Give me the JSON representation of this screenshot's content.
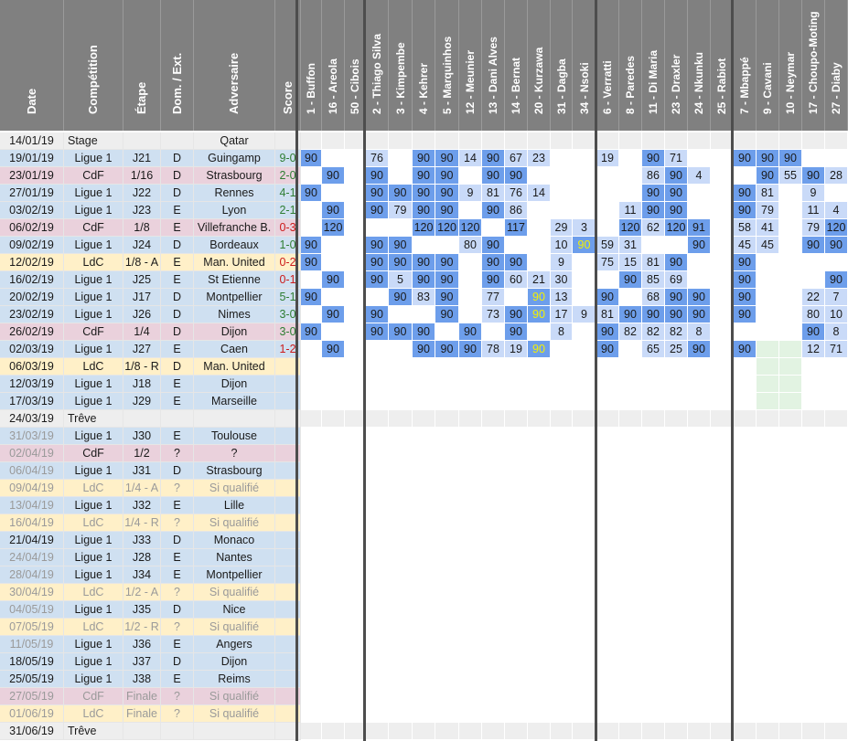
{
  "columns": [
    {
      "key": "date",
      "label": "Date"
    },
    {
      "key": "comp",
      "label": "Compétition"
    },
    {
      "key": "stage",
      "label": "Étape"
    },
    {
      "key": "venue",
      "label": "Dom. / Ext."
    },
    {
      "key": "opp",
      "label": "Adversaire"
    },
    {
      "key": "score",
      "label": "Score"
    },
    {
      "key": "p1",
      "label": "1 - Buffon"
    },
    {
      "key": "p16",
      "label": "16 - Areola"
    },
    {
      "key": "p50",
      "label": "50 - Cibois"
    },
    {
      "key": "p2",
      "label": "2 - Thiago Silva"
    },
    {
      "key": "p3",
      "label": "3 - Kimpembe"
    },
    {
      "key": "p4",
      "label": "4 - Kehrer"
    },
    {
      "key": "p5",
      "label": "5 - Marquinhos"
    },
    {
      "key": "p12",
      "label": "12 - Meunier"
    },
    {
      "key": "p13",
      "label": "13 - Dani Alves"
    },
    {
      "key": "p14",
      "label": "14 - Bernat"
    },
    {
      "key": "p20",
      "label": "20 - Kurzawa"
    },
    {
      "key": "p31",
      "label": "31 - Dagba"
    },
    {
      "key": "p34",
      "label": "34 - Nsoki"
    },
    {
      "key": "p6",
      "label": "6 - Verratti"
    },
    {
      "key": "p8",
      "label": "8 - Paredes"
    },
    {
      "key": "p11",
      "label": "11 - Di Maria"
    },
    {
      "key": "p23",
      "label": "23 - Draxler"
    },
    {
      "key": "p24",
      "label": "24 - Nkunku"
    },
    {
      "key": "p25",
      "label": "25 - Rabiot"
    },
    {
      "key": "p7",
      "label": "7 - Mbappé"
    },
    {
      "key": "p9",
      "label": "9 - Cavani"
    },
    {
      "key": "p10",
      "label": "10 - Neymar"
    },
    {
      "key": "p17",
      "label": "17 - Choupo-Moting"
    },
    {
      "key": "p27",
      "label": "27 - Diaby"
    }
  ],
  "matches": [
    {
      "date": "14/01/19",
      "comp": "Stage",
      "stage": "",
      "venue": "",
      "opp": "Qatar",
      "score": "",
      "kind": "stage"
    },
    {
      "date": "19/01/19",
      "comp": "Ligue 1",
      "stage": "J21",
      "venue": "D",
      "opp": "Guingamp",
      "score": "9-0",
      "kind": "l1",
      "mins": {
        "p1": "90",
        "p2": "76",
        "p4": "90",
        "p5": "90",
        "p12": "14",
        "p13": "90",
        "p14": "67",
        "p20": "23",
        "p6": "19",
        "p11": "90",
        "p23": "71",
        "p7": "90",
        "p9": "90",
        "p10": "90"
      }
    },
    {
      "date": "23/01/19",
      "comp": "CdF",
      "stage": "1/16",
      "venue": "D",
      "opp": "Strasbourg",
      "score": "2-0",
      "kind": "cdf",
      "mins": {
        "p16": "90",
        "p2": "90",
        "p4": "90",
        "p5": "90",
        "p13": "90",
        "p14": "90",
        "p11": "86",
        "p23": "90",
        "p24": "4",
        "p9": "90",
        "p10": "55",
        "p17": "90",
        "p27": "28"
      }
    },
    {
      "date": "27/01/19",
      "comp": "Ligue 1",
      "stage": "J22",
      "venue": "D",
      "opp": "Rennes",
      "score": "4-1",
      "kind": "l1",
      "mins": {
        "p1": "90",
        "p2": "90",
        "p3": "90",
        "p4": "90",
        "p5": "90",
        "p12": "9",
        "p13": "81",
        "p14": "76",
        "p20": "14",
        "p11": "90",
        "p23": "90",
        "p7": "90",
        "p9": "81",
        "p17": "9"
      }
    },
    {
      "date": "03/02/19",
      "comp": "Ligue 1",
      "stage": "J23",
      "venue": "E",
      "opp": "Lyon",
      "score": "2-1",
      "kind": "l1",
      "mins": {
        "p16": "90",
        "p2": "90",
        "p3": "79",
        "p4": "90",
        "p5": "90",
        "p13": "90",
        "p14": "86",
        "p8": "11",
        "p11": "90",
        "p23": "90",
        "p7": "90",
        "p9": "79",
        "p17": "11",
        "p27": "4"
      }
    },
    {
      "date": "06/02/19",
      "comp": "CdF",
      "stage": "1/8",
      "venue": "E",
      "opp": "Villefranche B.",
      "score": "0-3",
      "kind": "cdf",
      "mins": {
        "p16": "120",
        "p4": "120",
        "p5": "120",
        "p12": "120",
        "p14": "117",
        "p31": "29",
        "p34": "3",
        "p8": "120",
        "p11": "62",
        "p23": "120",
        "p24": "91",
        "p7": "58",
        "p9": "41",
        "p17": "79",
        "p27": "120"
      }
    },
    {
      "date": "09/02/19",
      "comp": "Ligue 1",
      "stage": "J24",
      "venue": "D",
      "opp": "Bordeaux",
      "score": "1-0",
      "kind": "l1",
      "mins": {
        "p1": "90",
        "p2": "90",
        "p3": "90",
        "p12": "80",
        "p13": "90",
        "p31": "10",
        "p34": "90",
        "p6": "59",
        "p8": "31",
        "p24": "90",
        "p7": "45",
        "p9": "45",
        "p17": "90",
        "p27": "90"
      }
    },
    {
      "date": "12/02/19",
      "comp": "LdC",
      "stage": "1/8 - A",
      "venue": "E",
      "opp": "Man. United",
      "score": "0-2",
      "kind": "ldc",
      "mins": {
        "p1": "90",
        "p2": "90",
        "p3": "90",
        "p4": "90",
        "p5": "90",
        "p13": "90",
        "p14": "90",
        "p31": "9",
        "p6": "75",
        "p8": "15",
        "p11": "81",
        "p23": "90",
        "p7": "90"
      }
    },
    {
      "date": "16/02/19",
      "comp": "Ligue 1",
      "stage": "J25",
      "venue": "E",
      "opp": "St Etienne",
      "score": "0-1",
      "kind": "l1",
      "mins": {
        "p16": "90",
        "p2": "90",
        "p3": "5",
        "p4": "90",
        "p5": "90",
        "p13": "90",
        "p14": "60",
        "p20": "21",
        "p31": "30",
        "p8": "90",
        "p11": "85",
        "p23": "69",
        "p7": "90",
        "p27": "90"
      }
    },
    {
      "date": "20/02/19",
      "comp": "Ligue 1",
      "stage": "J17",
      "venue": "D",
      "opp": "Montpellier",
      "score": "5-1",
      "kind": "l1",
      "mins": {
        "p1": "90",
        "p3": "90",
        "p4": "83",
        "p5": "90",
        "p13": "77",
        "p20": "90",
        "p31": "13",
        "p6": "90",
        "p11": "68",
        "p23": "90",
        "p24": "90",
        "p7": "90",
        "p17": "22",
        "p27": "7"
      }
    },
    {
      "date": "23/02/19",
      "comp": "Ligue 1",
      "stage": "J26",
      "venue": "D",
      "opp": "Nimes",
      "score": "3-0",
      "kind": "l1",
      "mins": {
        "p16": "90",
        "p2": "90",
        "p5": "90",
        "p13": "73",
        "p14": "90",
        "p20": "90",
        "p31": "17",
        "p34": "9",
        "p6": "81",
        "p8": "90",
        "p11": "90",
        "p23": "90",
        "p24": "90",
        "p7": "90",
        "p17": "80",
        "p27": "10"
      }
    },
    {
      "date": "26/02/19",
      "comp": "CdF",
      "stage": "1/4",
      "venue": "D",
      "opp": "Dijon",
      "score": "3-0",
      "kind": "cdf",
      "mins": {
        "p1": "90",
        "p2": "90",
        "p3": "90",
        "p4": "90",
        "p12": "90",
        "p14": "90",
        "p31": "8",
        "p6": "90",
        "p8": "82",
        "p11": "82",
        "p23": "82",
        "p24": "8",
        "p17": "90",
        "p27": "8"
      }
    },
    {
      "date": "02/03/19",
      "comp": "Ligue 1",
      "stage": "J27",
      "venue": "E",
      "opp": "Caen",
      "score": "1-2",
      "kind": "l1",
      "mins": {
        "p16": "90",
        "p4": "90",
        "p5": "90",
        "p12": "90",
        "p13": "78",
        "p14": "19",
        "p20": "90",
        "p6": "90",
        "p11": "65",
        "p23": "25",
        "p24": "90",
        "p7": "90",
        "p17": "12",
        "p27": "71"
      }
    },
    {
      "date": "06/03/19",
      "comp": "LdC",
      "stage": "1/8 - R",
      "venue": "D",
      "opp": "Man. United",
      "score": "",
      "kind": "ldc"
    },
    {
      "date": "12/03/19",
      "comp": "Ligue 1",
      "stage": "J18",
      "venue": "E",
      "opp": "Dijon",
      "score": "",
      "kind": "l1"
    },
    {
      "date": "17/03/19",
      "comp": "Ligue 1",
      "stage": "J29",
      "venue": "E",
      "opp": "Marseille",
      "score": "",
      "kind": "l1"
    },
    {
      "date": "24/03/19",
      "comp": "Trêve",
      "stage": "",
      "venue": "",
      "opp": "",
      "score": "",
      "kind": "treve"
    },
    {
      "date": "31/03/19",
      "comp": "Ligue 1",
      "stage": "J30",
      "venue": "E",
      "opp": "Toulouse",
      "score": "",
      "kind": "l1",
      "dimdate": true
    },
    {
      "date": "02/04/19",
      "comp": "CdF",
      "stage": "1/2",
      "venue": "?",
      "opp": "?",
      "score": "",
      "kind": "cdf",
      "dimdate": true
    },
    {
      "date": "06/04/19",
      "comp": "Ligue 1",
      "stage": "J31",
      "venue": "D",
      "opp": "Strasbourg",
      "score": "",
      "kind": "l1",
      "dimdate": true
    },
    {
      "date": "09/04/19",
      "comp": "LdC",
      "stage": "1/4 - A",
      "venue": "?",
      "opp": "Si qualifié",
      "score": "",
      "kind": "ldc",
      "dim": true
    },
    {
      "date": "13/04/19",
      "comp": "Ligue 1",
      "stage": "J32",
      "venue": "E",
      "opp": "Lille",
      "score": "",
      "kind": "l1",
      "dimdate": true
    },
    {
      "date": "16/04/19",
      "comp": "LdC",
      "stage": "1/4 - R",
      "venue": "?",
      "opp": "Si qualifié",
      "score": "",
      "kind": "ldc",
      "dim": true
    },
    {
      "date": "21/04/19",
      "comp": "Ligue 1",
      "stage": "J33",
      "venue": "D",
      "opp": "Monaco",
      "score": "",
      "kind": "l1"
    },
    {
      "date": "24/04/19",
      "comp": "Ligue 1",
      "stage": "J28",
      "venue": "E",
      "opp": "Nantes",
      "score": "",
      "kind": "l1",
      "dimdate": true
    },
    {
      "date": "28/04/19",
      "comp": "Ligue 1",
      "stage": "J34",
      "venue": "E",
      "opp": "Montpellier",
      "score": "",
      "kind": "l1",
      "dimdate": true
    },
    {
      "date": "30/04/19",
      "comp": "LdC",
      "stage": "1/2 - A",
      "venue": "?",
      "opp": "Si qualifié",
      "score": "",
      "kind": "ldc",
      "dim": true
    },
    {
      "date": "04/05/19",
      "comp": "Ligue 1",
      "stage": "J35",
      "venue": "D",
      "opp": "Nice",
      "score": "",
      "kind": "l1",
      "dimdate": true
    },
    {
      "date": "07/05/19",
      "comp": "LdC",
      "stage": "1/2 - R",
      "venue": "?",
      "opp": "Si qualifié",
      "score": "",
      "kind": "ldc",
      "dim": true
    },
    {
      "date": "11/05/19",
      "comp": "Ligue 1",
      "stage": "J36",
      "venue": "E",
      "opp": "Angers",
      "score": "",
      "kind": "l1",
      "dimdate": true
    },
    {
      "date": "18/05/19",
      "comp": "Ligue 1",
      "stage": "J37",
      "venue": "D",
      "opp": "Dijon",
      "score": "",
      "kind": "l1"
    },
    {
      "date": "25/05/19",
      "comp": "Ligue 1",
      "stage": "J38",
      "venue": "E",
      "opp": "Reims",
      "score": "",
      "kind": "l1"
    },
    {
      "date": "27/05/19",
      "comp": "CdF",
      "stage": "Finale",
      "venue": "?",
      "opp": "Si qualifié",
      "score": "",
      "kind": "cdf",
      "dim": true
    },
    {
      "date": "01/06/19",
      "comp": "LdC",
      "stage": "Finale",
      "venue": "?",
      "opp": "Si qualifié",
      "score": "",
      "kind": "ldc",
      "dim": true
    },
    {
      "date": "31/06/19",
      "comp": "Trêve",
      "stage": "",
      "venue": "",
      "opp": "",
      "score": "",
      "kind": "treve"
    }
  ],
  "colors": {
    "header_bg": "#808080",
    "stage_bg": "#eeeeee",
    "l1_bg": "#cfe0f1",
    "cdf_bg": "#ead1dc",
    "ldc_bg": "#fff0c8",
    "treve_bg": "#eeeeee",
    "played_full": "#6d9eeb",
    "played_partial": "#c9daf8",
    "goalkeeper_yellow": "#f6f30b",
    "zone_green": "#e2f3e2",
    "zone_yellow": "#fff6d0",
    "zone_pink": "#fde0e0",
    "injury_red": "#e99b9b",
    "separator": "#4d4d4d"
  }
}
